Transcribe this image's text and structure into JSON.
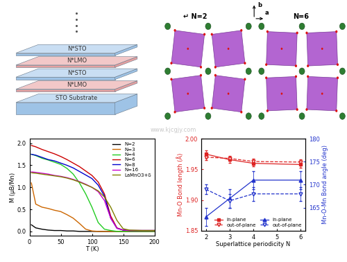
{
  "watermark": "www.kjcgjy.com",
  "schematic": {
    "layers": [
      "N*LMO",
      "N*STO",
      "N*LMO",
      "N*STO"
    ],
    "substrate": "STO Substrate"
  },
  "structures": {
    "panels": [
      "↵ N=2",
      "N=6"
    ],
    "axis_labels": [
      "b",
      "a"
    ]
  },
  "chart_data": [
    {
      "type": "line",
      "xlabel": "T (K)",
      "ylabel": "M (μB/Mn)",
      "xlim": [
        0,
        200
      ],
      "xticks": [
        0,
        50,
        100,
        150,
        200
      ],
      "ylim": [
        -0.1,
        2.1
      ],
      "yticks": [
        {
          "value": 0,
          "label": "0.0"
        },
        {
          "value": 0.5,
          "label": "0.5"
        },
        {
          "value": 1,
          "label": "1.0"
        },
        {
          "value": 1.5,
          "label": "1.5"
        },
        {
          "value": 2,
          "label": "2.0"
        }
      ],
      "legend": "upper right",
      "line_style": "solid",
      "x": [
        3,
        10,
        20,
        30,
        40,
        50,
        60,
        70,
        80,
        90,
        100,
        110,
        120,
        130,
        140,
        150,
        160,
        180,
        200
      ],
      "series": [
        {
          "name": "N=2",
          "color": "#000000",
          "values": [
            0.15,
            0.08,
            0.05,
            0.03,
            0.02,
            0.02,
            0.01,
            0.01,
            0,
            0,
            0,
            0,
            0,
            0,
            0,
            0,
            0,
            0,
            0
          ]
        },
        {
          "name": "N=3",
          "color": "#CC6600",
          "values": [
            1.1,
            0.62,
            0.55,
            0.52,
            0.48,
            0.45,
            0.38,
            0.3,
            0.18,
            0.05,
            0.01,
            0,
            0,
            0,
            0,
            0,
            0,
            0,
            0
          ]
        },
        {
          "name": "N=4",
          "color": "#22CC22",
          "values": [
            1.75,
            1.72,
            1.66,
            1.62,
            1.57,
            1.52,
            1.43,
            1.3,
            1.1,
            0.85,
            0.55,
            0.2,
            0.05,
            0.02,
            0,
            0,
            0,
            0,
            0
          ]
        },
        {
          "name": "N=6",
          "color": "#CC0000",
          "values": [
            1.95,
            1.92,
            1.86,
            1.81,
            1.76,
            1.7,
            1.63,
            1.55,
            1.47,
            1.37,
            1.27,
            1.12,
            0.85,
            0.35,
            0.08,
            0.03,
            0.02,
            0.02,
            0.02
          ]
        },
        {
          "name": "N=8",
          "color": "#0000CC",
          "values": [
            1.75,
            1.73,
            1.68,
            1.63,
            1.6,
            1.55,
            1.5,
            1.44,
            1.36,
            1.28,
            1.2,
            1.05,
            0.8,
            0.3,
            0.07,
            0.03,
            0.02,
            0.02,
            0.02
          ]
        },
        {
          "name": "N=16",
          "color": "#CC00CC",
          "values": [
            1.35,
            1.34,
            1.32,
            1.3,
            1.27,
            1.25,
            1.22,
            1.18,
            1.13,
            1.07,
            1.0,
            0.9,
            0.7,
            0.3,
            0.07,
            0.03,
            0.02,
            0.02,
            0.02
          ]
        },
        {
          "name": "LaMnO3+δ",
          "color": "#808000",
          "values": [
            1.33,
            1.32,
            1.3,
            1.28,
            1.26,
            1.24,
            1.21,
            1.17,
            1.12,
            1.06,
            1.0,
            0.92,
            0.78,
            0.55,
            0.25,
            0.06,
            0.03,
            0.02,
            0.02
          ]
        }
      ]
    },
    {
      "type": "line",
      "xlabel": "Superlattice periodicity N",
      "ylabel": "Mn-O Bond length (Å)",
      "y2label": "Mn-O-Mn Bond angle (deg)",
      "xlim": [
        1.8,
        6.2
      ],
      "xticks": [
        2,
        3,
        4,
        5,
        6
      ],
      "ylim": [
        1.85,
        2.0
      ],
      "yticks": [
        1.85,
        {
          "value": 1.9,
          "label": "1.90"
        },
        1.95,
        {
          "value": 2.0,
          "label": "2.00"
        }
      ],
      "y2lim": [
        160,
        180
      ],
      "y2ticks": [
        165,
        170,
        175,
        180
      ],
      "legend": "lower right",
      "x": [
        2,
        3,
        4,
        6
      ],
      "series": [
        {
          "name": "in-plane",
          "color": "#DD2222",
          "marker": "square",
          "line_style": "solid",
          "values": [
            1.975,
            1.966,
            1.96,
            1.958
          ],
          "errors": [
            0.006,
            0.005,
            0.005,
            0.005
          ]
        },
        {
          "name": "out-of-plane",
          "color": "#DD2222",
          "marker": "open_triangle_down",
          "line_style": "dashed",
          "values": [
            1.97,
            1.968,
            1.963,
            1.962
          ],
          "errors": [
            0.005,
            0.004,
            0.004,
            0.004
          ]
        },
        {
          "name": "in-plane",
          "color": "#2233CC",
          "marker": "triangle",
          "line_style": "solid",
          "axis": "y2",
          "values": [
            163,
            167,
            171,
            171
          ],
          "errors": [
            2,
            2,
            2,
            2
          ]
        },
        {
          "name": "out-of-plane",
          "color": "#2233CC",
          "marker": "open_triangle_down",
          "line_style": "dashed",
          "axis": "y2",
          "values": [
            169,
            166.5,
            168,
            168
          ],
          "errors": [
            1,
            1.5,
            1.5,
            1.5
          ]
        }
      ]
    }
  ]
}
